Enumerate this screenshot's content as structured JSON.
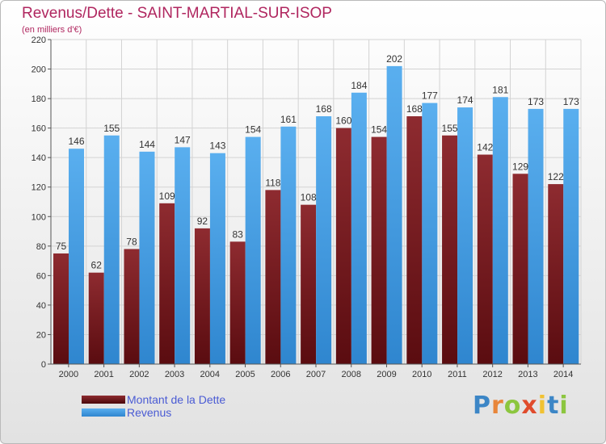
{
  "title": "Revenus/Dette - SAINT-MARTIAL-SUR-ISOP",
  "subtitle": "(en milliers d'€)",
  "colors": {
    "title": "#b0265f",
    "dette": "#7a1f24",
    "revenus": "#4da3e8",
    "legend_text": "#4a5bd4"
  },
  "legend": [
    {
      "label": "Montant de la Dette",
      "color": "#6b1418"
    },
    {
      "label": "Revenus",
      "color": "#3f97e0"
    }
  ],
  "logo": {
    "text": "Proxiti",
    "letters": [
      {
        "ch": "P",
        "color": "#3c86c6"
      },
      {
        "ch": "r",
        "color": "#e8863a"
      },
      {
        "ch": "o",
        "color": "#8cc63f"
      },
      {
        "ch": "x",
        "color": "#e04b2c"
      },
      {
        "ch": "i",
        "color": "#f1c232"
      },
      {
        "ch": "t",
        "color": "#3c86c6"
      },
      {
        "ch": "i",
        "color": "#8cc63f"
      }
    ]
  },
  "chart_data": {
    "type": "bar",
    "categories": [
      "2000",
      "2001",
      "2002",
      "2003",
      "2004",
      "2005",
      "2006",
      "2007",
      "2008",
      "2009",
      "2010",
      "2011",
      "2012",
      "2013",
      "2014"
    ],
    "series": [
      {
        "name": "Montant de la Dette",
        "values": [
          75,
          62,
          78,
          109,
          92,
          83,
          118,
          108,
          160,
          154,
          168,
          155,
          142,
          129,
          122
        ]
      },
      {
        "name": "Revenus",
        "values": [
          146,
          155,
          144,
          147,
          143,
          154,
          161,
          168,
          184,
          202,
          177,
          174,
          181,
          173,
          173
        ]
      }
    ],
    "ylim": [
      0,
      220
    ],
    "yticks": [
      0,
      20,
      40,
      60,
      80,
      100,
      120,
      140,
      160,
      180,
      200,
      220
    ],
    "grid": true,
    "legend_position": "bottom-left"
  }
}
